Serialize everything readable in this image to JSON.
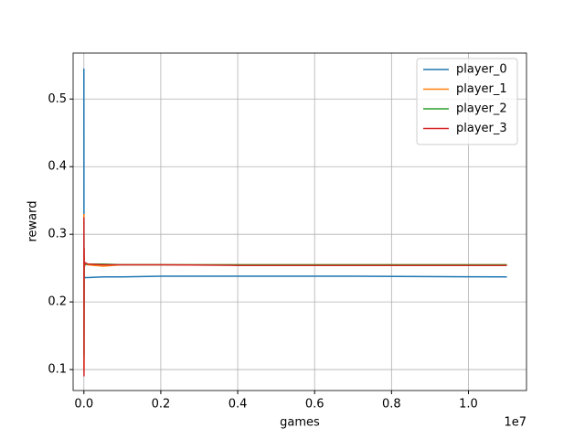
{
  "chart_data": {
    "type": "line",
    "xlabel": "games",
    "ylabel": "reward",
    "x_offset_label": "1e7",
    "x": [
      0,
      0.0003,
      0.0006,
      0.001,
      0.003,
      0.01,
      0.05,
      0.1,
      0.2,
      0.4,
      0.7,
      1.1
    ],
    "series": [
      {
        "name": "player_0",
        "color": "#1f77b4",
        "values": [
          0.545,
          0.19,
          0.26,
          0.235,
          0.236,
          0.236,
          0.237,
          0.237,
          0.238,
          0.238,
          0.238,
          0.237
        ]
      },
      {
        "name": "player_1",
        "color": "#ff7f0e",
        "values": [
          0.33,
          0.1,
          0.27,
          0.25,
          0.258,
          0.255,
          0.253,
          0.255,
          0.255,
          0.255,
          0.255,
          0.255
        ]
      },
      {
        "name": "player_2",
        "color": "#2ca02c",
        "values": [
          0.3,
          0.12,
          0.26,
          0.255,
          0.255,
          0.256,
          0.256,
          0.255,
          0.255,
          0.255,
          0.255,
          0.255
        ]
      },
      {
        "name": "player_3",
        "color": "#d62728",
        "values": [
          0.325,
          0.09,
          0.28,
          0.252,
          0.258,
          0.256,
          0.255,
          0.255,
          0.255,
          0.254,
          0.254,
          0.254
        ]
      }
    ],
    "xlim": [
      -0.028,
      1.151
    ],
    "ylim": [
      0.069,
      0.568
    ],
    "xticks": [
      {
        "value": 0,
        "label": "0.0"
      },
      0.2,
      0.4,
      0.6,
      0.8,
      {
        "value": 1,
        "label": "1.0"
      }
    ],
    "yticks": [
      0.1,
      0.2,
      0.3,
      0.4,
      0.5
    ],
    "grid": true,
    "legend": "upper right"
  }
}
